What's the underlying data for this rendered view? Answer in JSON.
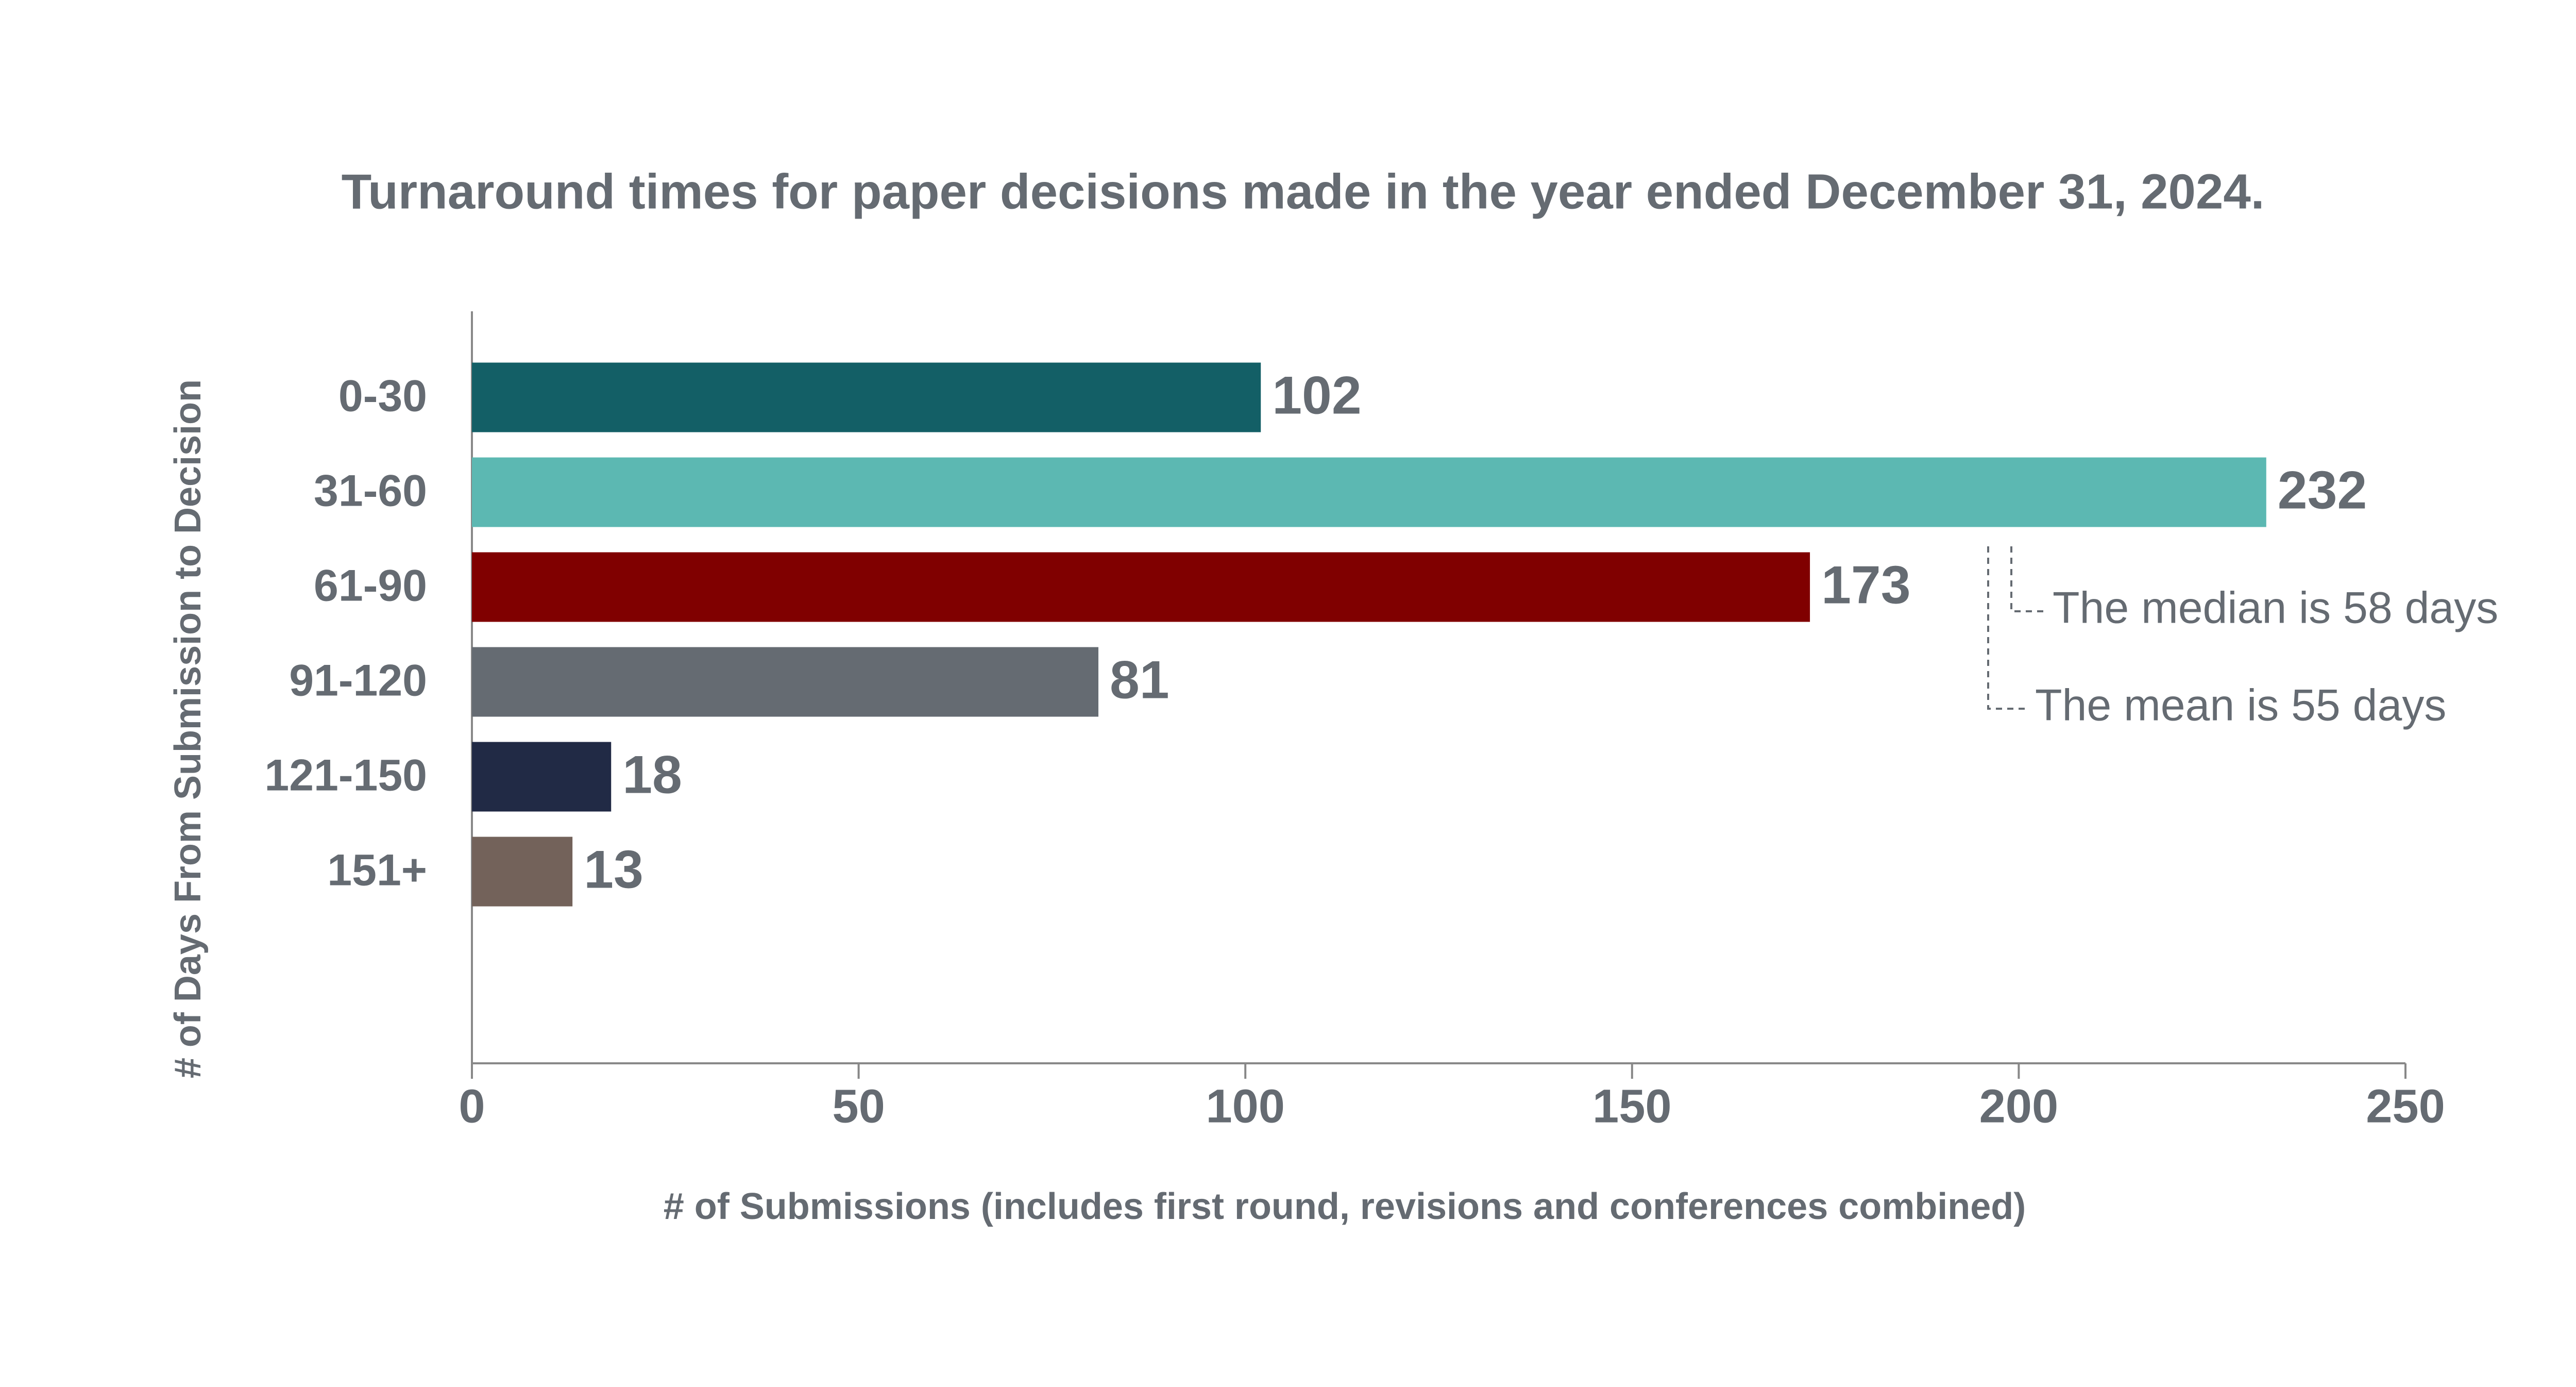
{
  "chart_data": {
    "type": "bar",
    "title": "Turnaround times for paper decisions made in the year ended December 31, 2024.",
    "x_label": "# of Submissions (includes first round, revisions and conferences combined)",
    "y_label": "# of Days From Submission to Decision",
    "categories": [
      "0-30",
      "31-60",
      "61-90",
      "91-120",
      "121-150",
      "151+"
    ],
    "values": [
      102,
      232,
      173,
      81,
      18,
      13
    ],
    "colors": [
      "#135f66",
      "#5cb8b2",
      "#800000",
      "#656b72",
      "#212a45",
      "#73625a"
    ],
    "xlim": [
      0,
      250
    ],
    "xticks": [
      0,
      50,
      100,
      150,
      200,
      250
    ],
    "annotations": [
      "The median is 58 days",
      "The mean is 55 days"
    ]
  }
}
